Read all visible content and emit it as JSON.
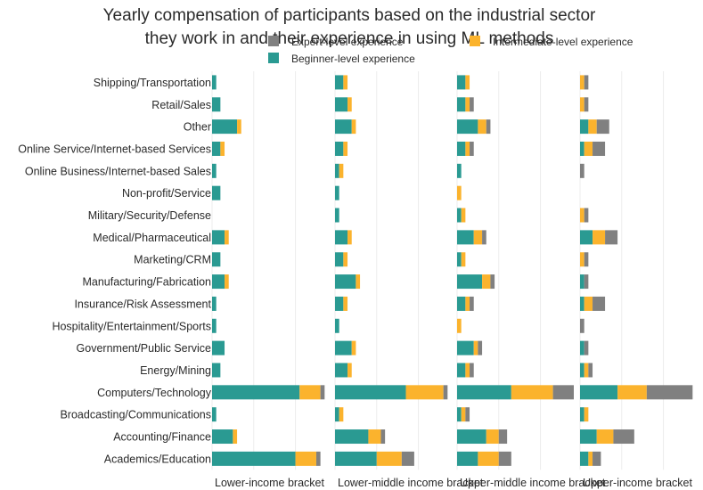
{
  "chart_data": {
    "type": "bar",
    "orientation": "horizontal",
    "stacked": true,
    "title": "Yearly compensation of participants based on the industrial sector they work in and their experience in using ML methods",
    "title_lines": [
      "Yearly compensation of participants based on the industrial sector",
      "they work in and their experience in using ML methods"
    ],
    "categories": [
      "Shipping/Transportation",
      "Retail/Sales",
      "Other",
      "Online Service/Internet-based Services",
      "Online Business/Internet-based Sales",
      "Non-profit/Service",
      "Military/Security/Defense",
      "Medical/Pharmaceutical",
      "Marketing/CRM",
      "Manufacturing/Fabrication",
      "Insurance/Risk Assessment",
      "Hospitality/Entertainment/Sports",
      "Government/Public Service",
      "Energy/Mining",
      "Computers/Technology",
      "Broadcasting/Communications",
      "Accounting/Finance",
      "Academics/Education"
    ],
    "panels": [
      {
        "name": "Lower-income bracket",
        "series": {
          "Beginner-level experience": [
            1,
            2,
            6,
            2,
            1,
            2,
            0,
            3,
            2,
            3,
            1,
            1,
            3,
            2,
            21,
            1,
            5,
            20
          ],
          "Intermediate-level experience": [
            0,
            0,
            1,
            1,
            0,
            0,
            0,
            1,
            0,
            1,
            0,
            0,
            0,
            0,
            5,
            0,
            1,
            5
          ],
          "Expert-level experience": [
            0,
            0,
            0,
            0,
            0,
            0,
            0,
            0,
            0,
            0,
            0,
            0,
            0,
            0,
            1,
            0,
            0,
            1
          ]
        }
      },
      {
        "name": "Lower-middle income bracket",
        "series": {
          "Beginner-level experience": [
            2,
            3,
            4,
            2,
            1,
            1,
            1,
            3,
            2,
            5,
            2,
            1,
            4,
            3,
            17,
            1,
            8,
            10
          ],
          "Intermediate-level experience": [
            1,
            1,
            1,
            1,
            1,
            0,
            0,
            1,
            1,
            1,
            1,
            0,
            1,
            1,
            9,
            1,
            3,
            6
          ],
          "Expert-level experience": [
            0,
            0,
            0,
            0,
            0,
            0,
            0,
            0,
            0,
            0,
            0,
            0,
            0,
            0,
            1,
            0,
            1,
            3
          ]
        }
      },
      {
        "name": "Upper-middle income bracket",
        "series": {
          "Beginner-level experience": [
            2,
            2,
            5,
            2,
            1,
            0,
            1,
            4,
            1,
            6,
            2,
            0,
            4,
            2,
            13,
            1,
            7,
            5
          ],
          "Intermediate-level experience": [
            1,
            1,
            2,
            1,
            0,
            1,
            1,
            2,
            1,
            2,
            1,
            1,
            1,
            1,
            10,
            1,
            3,
            5
          ],
          "Expert-level experience": [
            0,
            1,
            1,
            1,
            0,
            0,
            0,
            1,
            0,
            1,
            1,
            0,
            1,
            1,
            5,
            1,
            2,
            3
          ]
        }
      },
      {
        "name": "Upper-income bracket",
        "series": {
          "Beginner-level experience": [
            0,
            0,
            2,
            1,
            0,
            0,
            0,
            3,
            0,
            1,
            1,
            0,
            1,
            1,
            9,
            1,
            4,
            2
          ],
          "Intermediate-level experience": [
            1,
            1,
            2,
            2,
            0,
            0,
            1,
            3,
            1,
            0,
            2,
            0,
            0,
            1,
            7,
            1,
            4,
            1
          ],
          "Expert-level experience": [
            1,
            1,
            3,
            3,
            1,
            0,
            1,
            3,
            1,
            1,
            3,
            1,
            1,
            1,
            11,
            0,
            5,
            2
          ]
        }
      }
    ],
    "xlim": [
      0,
      28
    ],
    "series_order": [
      "Beginner-level experience",
      "Intermediate-level experience",
      "Expert-level experience"
    ],
    "legend": [
      {
        "label": "Expert-level experience",
        "color": "#808080"
      },
      {
        "label": "Intermediate-level experience",
        "color": "#fbb32d"
      },
      {
        "label": "Beginner-level experience",
        "color": "#2a9a92"
      }
    ],
    "colors": {
      "Beginner-level experience": "#2a9a92",
      "Intermediate-level experience": "#fbb32d",
      "Expert-level experience": "#808080"
    },
    "legend_position": "top",
    "grid": true
  }
}
